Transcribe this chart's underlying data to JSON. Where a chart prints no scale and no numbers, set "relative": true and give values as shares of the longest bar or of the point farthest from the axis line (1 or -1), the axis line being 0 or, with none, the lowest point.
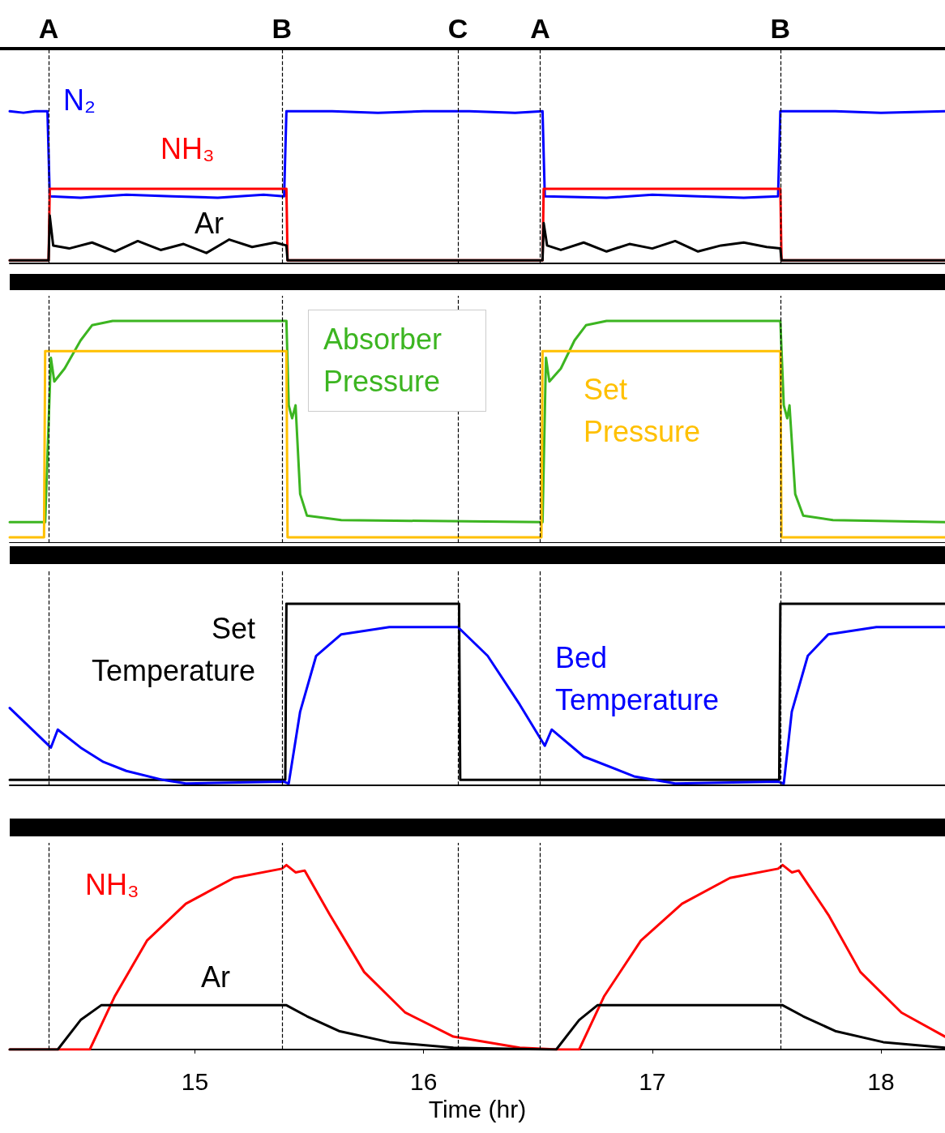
{
  "chart_data": [
    {
      "type": "line",
      "relative": true,
      "xlim": [
        14.19,
        18.28
      ],
      "tick_labels": false,
      "grid": false,
      "legend": false,
      "marker": "none",
      "line_style": "solid",
      "ref_lines": [
        {
          "axis": "x",
          "value": 14.355,
          "label": "A",
          "color": "#000000",
          "line_style": "dashed"
        },
        {
          "axis": "x",
          "value": 15.383,
          "label": "B",
          "color": "#000000",
          "line_style": "dashed"
        },
        {
          "axis": "x",
          "value": 16.152,
          "label": "C",
          "color": "#000000",
          "line_style": "dashed"
        },
        {
          "axis": "x",
          "value": 16.507,
          "label": "A",
          "color": "#000000",
          "line_style": "dashed"
        },
        {
          "axis": "x",
          "value": 17.56,
          "label": "B",
          "color": "#000000",
          "line_style": "dashed"
        }
      ],
      "series": [
        {
          "name": "N₂",
          "color": "#0000ff",
          "x": [
            14.19,
            14.25,
            14.3,
            14.355,
            14.365,
            14.5,
            14.7,
            14.9,
            15.1,
            15.3,
            15.39,
            15.4,
            15.6,
            15.8,
            16.0,
            16.2,
            16.4,
            16.52,
            16.53,
            16.8,
            17.0,
            17.2,
            17.4,
            17.55,
            17.56,
            17.8,
            18.0,
            18.28
          ],
          "values": [
            1,
            0.99,
            1,
            1,
            0.43,
            0.42,
            0.44,
            0.43,
            0.42,
            0.44,
            0.43,
            1,
            1,
            0.99,
            1,
            1,
            0.99,
            1,
            0.43,
            0.42,
            0.44,
            0.43,
            0.42,
            0.43,
            1,
            1,
            0.99,
            1
          ]
        },
        {
          "name": "NH₃",
          "color": "#ff0000",
          "x": [
            14.19,
            14.36,
            14.365,
            15.4,
            15.405,
            16.52,
            16.525,
            17.56,
            17.565,
            18.28
          ],
          "values": [
            0,
            0,
            0.48,
            0.48,
            0,
            0,
            0.48,
            0.48,
            0,
            0
          ]
        },
        {
          "name": "Ar",
          "color": "#000000",
          "x": [
            14.19,
            14.36,
            14.365,
            14.38,
            14.45,
            14.55,
            14.65,
            14.75,
            14.85,
            14.95,
            15.05,
            15.15,
            15.25,
            15.35,
            15.4,
            15.405,
            16.52,
            16.525,
            16.54,
            16.6,
            16.7,
            16.8,
            16.9,
            17.0,
            17.1,
            17.2,
            17.3,
            17.4,
            17.5,
            17.56,
            17.565,
            18.28
          ],
          "values": [
            0,
            0,
            0.3,
            0.1,
            0.08,
            0.12,
            0.06,
            0.13,
            0.07,
            0.11,
            0.05,
            0.14,
            0.09,
            0.12,
            0.1,
            0,
            0,
            0.25,
            0.1,
            0.07,
            0.12,
            0.06,
            0.11,
            0.08,
            0.13,
            0.06,
            0.1,
            0.12,
            0.09,
            0.08,
            0,
            0
          ]
        }
      ]
    },
    {
      "type": "line",
      "relative": true,
      "xlim": [
        14.19,
        18.28
      ],
      "tick_labels": false,
      "grid": false,
      "legend": false,
      "marker": "none",
      "line_style": "solid",
      "ref_lines": [
        {
          "axis": "x",
          "value": 14.355,
          "label": null,
          "color": "#000000",
          "line_style": "dashed"
        },
        {
          "axis": "x",
          "value": 15.383,
          "label": null,
          "color": "#000000",
          "line_style": "dashed"
        },
        {
          "axis": "x",
          "value": 16.152,
          "label": null,
          "color": "#000000",
          "line_style": "dashed"
        },
        {
          "axis": "x",
          "value": 16.507,
          "label": null,
          "color": "#000000",
          "line_style": "dashed"
        },
        {
          "axis": "x",
          "value": 17.56,
          "label": null,
          "color": "#000000",
          "line_style": "dashed"
        }
      ],
      "series": [
        {
          "name": "Absorber Pressure",
          "color": "#3cb521",
          "x": [
            14.19,
            14.345,
            14.37,
            14.385,
            14.43,
            14.5,
            14.55,
            14.64,
            15.4,
            15.41,
            15.425,
            15.44,
            15.46,
            15.49,
            15.64,
            16.52,
            16.535,
            16.55,
            16.6,
            16.66,
            16.71,
            16.8,
            17.56,
            17.575,
            17.59,
            17.6,
            17.625,
            17.66,
            17.79,
            18.28
          ],
          "values": [
            0.07,
            0.07,
            0.83,
            0.72,
            0.78,
            0.91,
            0.98,
            1,
            1,
            0.61,
            0.55,
            0.61,
            0.2,
            0.1,
            0.08,
            0.07,
            0.83,
            0.72,
            0.78,
            0.91,
            0.98,
            1,
            1,
            0.61,
            0.55,
            0.61,
            0.2,
            0.1,
            0.08,
            0.07
          ]
        },
        {
          "name": "Set Pressure",
          "color": "#ffc000",
          "x": [
            14.19,
            14.34,
            14.345,
            15.4,
            15.405,
            16.515,
            16.52,
            17.56,
            17.565,
            18.28
          ],
          "values": [
            0,
            0,
            0.86,
            0.86,
            0,
            0,
            0.86,
            0.86,
            0,
            0
          ]
        }
      ]
    },
    {
      "type": "line",
      "relative": true,
      "xlim": [
        14.19,
        18.28
      ],
      "tick_labels": false,
      "grid": false,
      "legend": false,
      "marker": "none",
      "line_style": "solid",
      "ref_lines": [
        {
          "axis": "x",
          "value": 14.355,
          "label": null,
          "color": "#000000",
          "line_style": "dashed"
        },
        {
          "axis": "x",
          "value": 15.383,
          "label": null,
          "color": "#000000",
          "line_style": "dashed"
        },
        {
          "axis": "x",
          "value": 16.152,
          "label": null,
          "color": "#000000",
          "line_style": "dashed"
        },
        {
          "axis": "x",
          "value": 16.507,
          "label": null,
          "color": "#000000",
          "line_style": "dashed"
        },
        {
          "axis": "x",
          "value": 17.56,
          "label": null,
          "color": "#000000",
          "line_style": "dashed"
        }
      ],
      "series": [
        {
          "name": "Set Temperature",
          "color": "#000000",
          "x": [
            14.19,
            15.395,
            15.4,
            16.155,
            16.16,
            17.555,
            17.56,
            18.28
          ],
          "values": [
            0.02,
            0.02,
            1,
            1,
            0.02,
            0.02,
            1,
            1
          ]
        },
        {
          "name": "Bed Temperature",
          "color": "#0000ff",
          "x": [
            14.19,
            14.37,
            14.4,
            14.5,
            14.6,
            14.7,
            14.86,
            14.96,
            15.39,
            15.41,
            15.46,
            15.53,
            15.64,
            15.85,
            16.15,
            16.28,
            16.42,
            16.53,
            16.56,
            16.7,
            16.92,
            17.1,
            17.55,
            17.575,
            17.61,
            17.68,
            17.77,
            17.98,
            18.28
          ],
          "values": [
            0.42,
            0.2,
            0.3,
            0.2,
            0.12,
            0.07,
            0.02,
            0,
            0.01,
            0,
            0.4,
            0.71,
            0.83,
            0.87,
            0.87,
            0.71,
            0.44,
            0.21,
            0.3,
            0.15,
            0.04,
            0,
            0.01,
            0,
            0.4,
            0.71,
            0.83,
            0.87,
            0.87
          ]
        }
      ]
    },
    {
      "type": "line",
      "relative": true,
      "xlim": [
        14.19,
        18.28
      ],
      "xticks": [
        15,
        16,
        17,
        18
      ],
      "xlabel": "Time (hr)",
      "tick_labels": "x",
      "grid": false,
      "legend": false,
      "marker": "none",
      "line_style": "solid",
      "ref_lines": [
        {
          "axis": "x",
          "value": 14.355,
          "label": null,
          "color": "#000000",
          "line_style": "dashed"
        },
        {
          "axis": "x",
          "value": 15.383,
          "label": null,
          "color": "#000000",
          "line_style": "dashed"
        },
        {
          "axis": "x",
          "value": 16.152,
          "label": null,
          "color": "#000000",
          "line_style": "dashed"
        },
        {
          "axis": "x",
          "value": 16.507,
          "label": null,
          "color": "#000000",
          "line_style": "dashed"
        },
        {
          "axis": "x",
          "value": 17.56,
          "label": null,
          "color": "#000000",
          "line_style": "dashed"
        }
      ],
      "series": [
        {
          "name": "NH₃",
          "color": "#ff0000",
          "x": [
            14.19,
            14.54,
            14.65,
            14.79,
            14.96,
            15.17,
            15.38,
            15.4,
            15.44,
            15.48,
            15.59,
            15.74,
            15.92,
            16.13,
            16.42,
            16.59,
            16.68,
            16.79,
            16.95,
            17.13,
            17.34,
            17.55,
            17.57,
            17.61,
            17.64,
            17.77,
            17.91,
            18.09,
            18.28
          ],
          "values": [
            0,
            0,
            0.29,
            0.59,
            0.79,
            0.93,
            0.98,
            1,
            0.96,
            0.97,
            0.73,
            0.42,
            0.2,
            0.07,
            0.01,
            0,
            0,
            0.29,
            0.59,
            0.79,
            0.93,
            0.98,
            1,
            0.96,
            0.97,
            0.73,
            0.42,
            0.2,
            0.07
          ]
        },
        {
          "name": "Ar",
          "color": "#000000",
          "x": [
            14.19,
            14.4,
            14.5,
            14.59,
            15.4,
            15.49,
            15.63,
            15.85,
            16.13,
            16.55,
            16.58,
            16.68,
            16.76,
            17.57,
            17.66,
            17.8,
            18.01,
            18.28
          ],
          "values": [
            0,
            0,
            0.16,
            0.24,
            0.24,
            0.18,
            0.1,
            0.04,
            0.01,
            0,
            0,
            0.16,
            0.24,
            0.24,
            0.18,
            0.1,
            0.04,
            0.01
          ]
        }
      ]
    }
  ]
}
